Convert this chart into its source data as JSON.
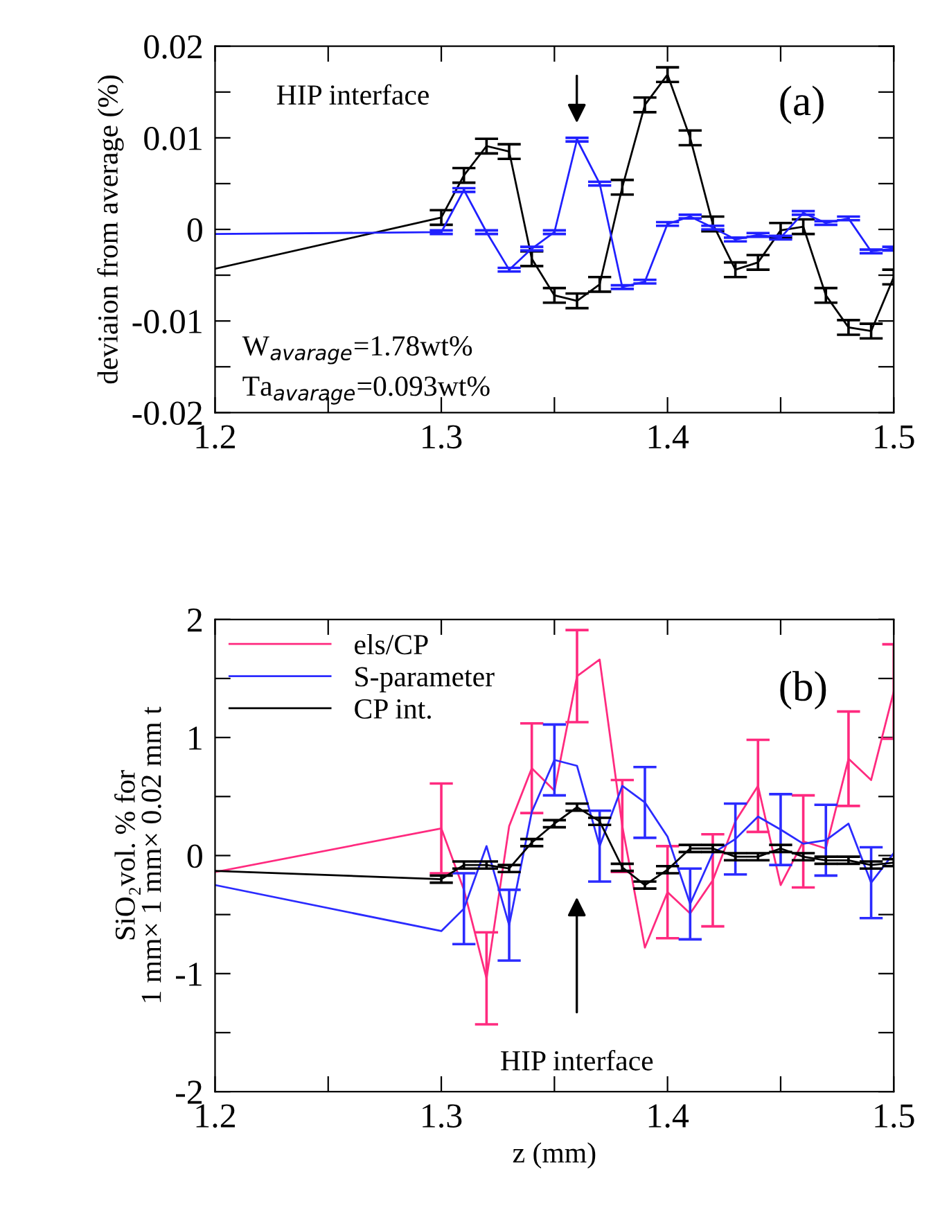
{
  "chart_data": [
    {
      "type": "line",
      "ylabel": "deviaion from average (%)",
      "x": [
        1.2,
        1.3,
        1.31,
        1.32,
        1.33,
        1.34,
        1.35,
        1.36,
        1.37,
        1.38,
        1.39,
        1.4,
        1.41,
        1.42,
        1.43,
        1.44,
        1.45,
        1.46,
        1.47,
        1.48,
        1.49,
        1.5
      ],
      "series": [
        {
          "color": "#000000",
          "values": [
            -0.0043,
            0.0013,
            0.0059,
            0.0091,
            0.0085,
            -0.0032,
            -0.0072,
            -0.0078,
            -0.006,
            0.0046,
            0.0136,
            0.0169,
            0.01,
            0.0006,
            -0.0044,
            -0.0036,
            -0.0001,
            0.0003,
            -0.0072,
            -0.0107,
            -0.0111,
            -0.0052
          ],
          "errors": [
            null,
            0.0008,
            0.0008,
            0.0008,
            0.0008,
            0.0008,
            0.0008,
            0.0008,
            0.0008,
            0.0008,
            0.0008,
            0.0008,
            0.0008,
            0.0008,
            0.0008,
            0.0008,
            0.0008,
            0.0008,
            0.0008,
            0.0008,
            0.0008,
            0.0008
          ]
        },
        {
          "color": "#2020ff",
          "values": [
            -0.0005,
            -0.0003,
            0.0043,
            -0.0003,
            -0.0044,
            -0.0021,
            -0.0003,
            0.0098,
            0.005,
            -0.0063,
            -0.0057,
            0.0006,
            0.0014,
            0.0002,
            -0.0011,
            -0.0006,
            -0.0009,
            0.0018,
            0.0007,
            0.0012,
            -0.0024,
            -0.0021
          ],
          "errors": [
            null,
            0.0002,
            0.0002,
            0.0002,
            0.0002,
            0.0002,
            0.0002,
            0.0002,
            0.0002,
            0.0002,
            0.0002,
            0.0002,
            0.0002,
            0.0002,
            0.0002,
            0.0002,
            0.0002,
            0.0002,
            0.0002,
            0.0002,
            0.0002,
            0.0002
          ]
        }
      ],
      "xlim": [
        1.2,
        1.5
      ],
      "ylim": [
        -0.02,
        0.02
      ],
      "xticks": [
        1.2,
        {
          "value": 1.25,
          "label": null
        },
        1.3,
        {
          "value": 1.35,
          "label": null
        },
        1.4,
        {
          "value": 1.45,
          "label": null
        },
        1.5
      ],
      "yticks": [
        -0.02,
        {
          "value": -0.015,
          "label": null
        },
        -0.01,
        {
          "value": -0.005,
          "label": null
        },
        0,
        {
          "value": 0.005,
          "label": null
        },
        0.01,
        {
          "value": 0.015,
          "label": null
        },
        0.02
      ],
      "annotations": [
        "HIP interface",
        "(a)",
        "W$_{avarage}$=1.78wt%",
        "Ta$_{avarage}$=0.093wt%"
      ],
      "grid": false,
      "legend": false,
      "marker": "none",
      "line_style": "solid"
    },
    {
      "type": "line",
      "xlabel": "z (mm)",
      "ylabel": "SiO₂vol. % for\n1 mm× 1 mm× 0.02 mm t",
      "x": [
        1.2,
        1.3,
        1.31,
        1.32,
        1.33,
        1.34,
        1.35,
        1.36,
        1.37,
        1.38,
        1.39,
        1.4,
        1.41,
        1.42,
        1.43,
        1.44,
        1.45,
        1.46,
        1.47,
        1.48,
        1.49,
        1.5
      ],
      "series": [
        {
          "name": "els/CP",
          "color": "#ff2a7f",
          "values": [
            -0.14,
            0.23,
            -0.29,
            -1.04,
            0.25,
            0.74,
            0.55,
            1.52,
            1.66,
            0.25,
            -0.78,
            -0.31,
            -0.49,
            -0.21,
            0.29,
            0.59,
            -0.25,
            0.12,
            0.06,
            0.82,
            0.64,
            1.39
          ],
          "errors": [
            null,
            0.38,
            null,
            0.39,
            null,
            0.38,
            null,
            0.39,
            null,
            0.39,
            null,
            0.39,
            null,
            0.39,
            null,
            0.39,
            null,
            0.39,
            null,
            0.4,
            null,
            0.4
          ]
        },
        {
          "name": "S-parameter",
          "color": "#2b2bff",
          "values": [
            -0.25,
            -0.64,
            -0.45,
            0.08,
            -0.59,
            0.37,
            0.81,
            0.76,
            0.08,
            0.59,
            0.45,
            0.16,
            -0.41,
            0.02,
            0.14,
            0.33,
            0.22,
            0.1,
            0.13,
            0.27,
            -0.23,
            0.02
          ],
          "errors": [
            null,
            null,
            0.3,
            null,
            0.3,
            null,
            0.3,
            null,
            0.3,
            null,
            0.3,
            null,
            0.3,
            null,
            0.3,
            null,
            0.3,
            null,
            0.3,
            null,
            0.3,
            null
          ]
        },
        {
          "name": "CP int.",
          "color": "#000000",
          "values": [
            -0.13,
            -0.2,
            -0.08,
            -0.08,
            -0.11,
            0.11,
            0.27,
            0.41,
            0.29,
            -0.1,
            -0.25,
            -0.12,
            0.06,
            0.06,
            -0.01,
            -0.01,
            0.06,
            -0.01,
            -0.04,
            -0.04,
            -0.08,
            -0.06
          ],
          "errors": [
            null,
            0.03,
            0.03,
            0.03,
            0.03,
            0.03,
            0.03,
            0.03,
            0.03,
            0.03,
            0.03,
            0.03,
            0.03,
            0.03,
            0.03,
            0.03,
            0.03,
            0.03,
            0.03,
            0.03,
            0.03,
            0.03
          ]
        }
      ],
      "xlim": [
        1.2,
        1.5
      ],
      "ylim": [
        -2,
        2
      ],
      "xticks": [
        1.2,
        {
          "value": 1.25,
          "label": null
        },
        1.3,
        {
          "value": 1.35,
          "label": null
        },
        1.4,
        {
          "value": 1.45,
          "label": null
        },
        1.5
      ],
      "yticks": [
        -2,
        {
          "value": -1.5,
          "label": null
        },
        -1,
        {
          "value": -0.5,
          "label": null
        },
        0,
        {
          "value": 0.5,
          "label": null
        },
        1,
        {
          "value": 1.5,
          "label": null
        },
        2
      ],
      "annotations": [
        "HIP interface",
        "(b)"
      ],
      "grid": false,
      "legend": "top left",
      "marker": "none",
      "line_style": "solid"
    }
  ]
}
